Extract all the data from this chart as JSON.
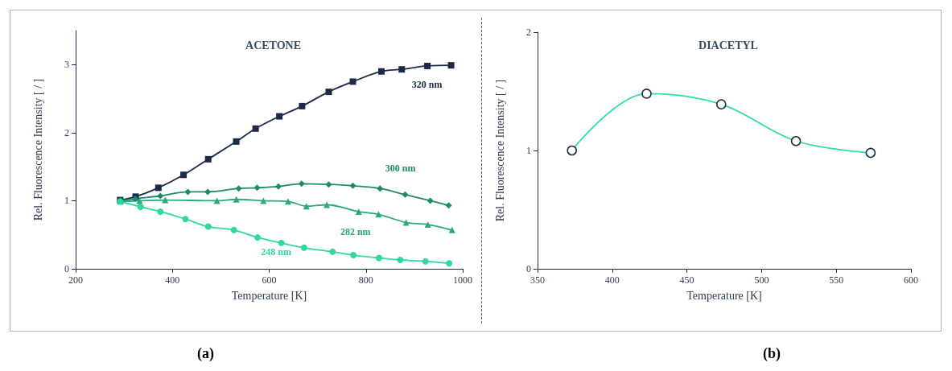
{
  "chart_data": [
    {
      "type": "line",
      "title": "ACETONE",
      "xlabel": "Temperature [K]",
      "ylabel": "Rel. Fluorescence Intensity [ / ]",
      "annotations": [
        "(a)"
      ],
      "xlim": [
        200,
        1000
      ],
      "xticks": [
        200,
        400,
        600,
        800,
        1000
      ],
      "ylim": [
        0,
        3.5
      ],
      "yticks": [
        0,
        1,
        2,
        3
      ],
      "grid": false,
      "legend": false,
      "series": [
        {
          "name": "320 nm",
          "color": "#1b2a47",
          "marker": "square",
          "x": [
            292,
            324,
            371,
            423,
            474,
            532,
            572,
            621,
            668,
            723,
            773,
            832,
            874,
            927,
            976
          ],
          "values": [
            1.01,
            1.06,
            1.19,
            1.38,
            1.61,
            1.87,
            2.06,
            2.24,
            2.39,
            2.6,
            2.75,
            2.9,
            2.93,
            2.98,
            2.99
          ]
        },
        {
          "name": "300 nm",
          "color": "#1e8a68",
          "marker": "diamond",
          "x": [
            292,
            323,
            375,
            432,
            473,
            537,
            575,
            619,
            667,
            723,
            773,
            829,
            881,
            933,
            971
          ],
          "values": [
            1.0,
            1.03,
            1.07,
            1.13,
            1.13,
            1.18,
            1.19,
            1.21,
            1.25,
            1.24,
            1.22,
            1.18,
            1.09,
            1.0,
            0.93
          ]
        },
        {
          "name": "282 nm",
          "color": "#2aa882",
          "marker": "triangle",
          "x": [
            292,
            332,
            385,
            492,
            532,
            588,
            639,
            677,
            719,
            785,
            826,
            883,
            928,
            978
          ],
          "values": [
            0.99,
            1.0,
            1.01,
            1.0,
            1.02,
            1.0,
            0.99,
            0.92,
            0.94,
            0.84,
            0.8,
            0.68,
            0.65,
            0.57
          ]
        },
        {
          "name": "248 nm",
          "color": "#2ed8a0",
          "marker": "circle",
          "x": [
            292,
            334,
            375,
            427,
            474,
            527,
            576,
            625,
            672,
            731,
            774,
            827,
            871,
            923,
            972
          ],
          "values": [
            0.99,
            0.91,
            0.84,
            0.73,
            0.62,
            0.57,
            0.46,
            0.38,
            0.31,
            0.25,
            0.2,
            0.16,
            0.13,
            0.11,
            0.08
          ]
        }
      ]
    },
    {
      "type": "line",
      "title": "DIACETYL",
      "xlabel": "Temperature [K]",
      "ylabel": "Rel. Fluorescence Intensity [ / ]",
      "annotations": [
        "(b)"
      ],
      "xlim": [
        350,
        600
      ],
      "xticks": [
        350,
        400,
        450,
        500,
        550,
        600
      ],
      "ylim": [
        0,
        2
      ],
      "yticks": [
        0,
        1,
        2
      ],
      "grid": false,
      "legend": false,
      "marker": "circle",
      "series": [
        {
          "color": "#2ee0a0",
          "x": [
            373,
            423,
            473,
            523,
            573
          ],
          "values": [
            1.0,
            1.48,
            1.39,
            1.08,
            0.98
          ]
        }
      ]
    }
  ]
}
